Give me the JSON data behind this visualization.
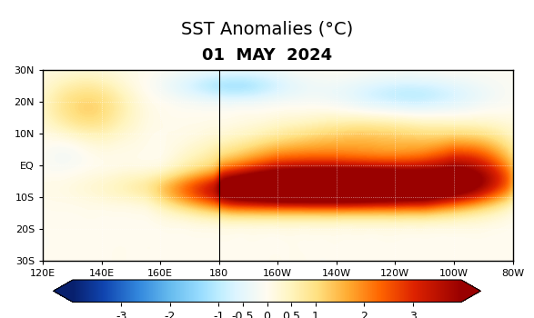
{
  "title_line1": "SST Anomalies (°C)",
  "title_line2": "01  MAY  2024",
  "lon_min": 120,
  "lon_max": 280,
  "lat_min": -30,
  "lat_max": 30,
  "lon_ticks": [
    120,
    140,
    160,
    180,
    200,
    220,
    240,
    260,
    280
  ],
  "lon_tick_labels": [
    "120E",
    "140E",
    "160E",
    "180",
    "160W",
    "140W",
    "120W",
    "100W",
    "80W"
  ],
  "lat_ticks": [
    -30,
    -20,
    -10,
    0,
    10,
    20,
    30
  ],
  "lat_tick_labels": [
    "30S",
    "20S",
    "10S",
    "EQ",
    "10N",
    "20N",
    "30N"
  ],
  "cbar_ticks": [
    -3,
    -2,
    -1,
    -0.5,
    0,
    0.5,
    1,
    2,
    3
  ],
  "cbar_tick_labels": [
    "-3",
    "-2",
    "-1",
    "-0.5",
    "0",
    "0.5",
    "1",
    "2",
    "3"
  ],
  "colormap_colors": [
    "#1034a6",
    "#2255cc",
    "#3377ee",
    "#66aaff",
    "#99ccff",
    "#bbddff",
    "#ddeeff",
    "#eef8ff",
    "#fffbe8",
    "#fff5c0",
    "#ffe090",
    "#ffb347",
    "#ff8000",
    "#ee5500",
    "#cc2200",
    "#aa0000"
  ],
  "colormap_levels": [
    -4,
    -3,
    -2,
    -1,
    -0.5,
    0,
    0.5,
    1,
    2,
    3,
    4
  ],
  "background_color": "#ffffff",
  "land_color": "#c8a46e",
  "grid_color": "#cccccc",
  "title_fontsize": 14,
  "subtitle_fontsize": 13
}
